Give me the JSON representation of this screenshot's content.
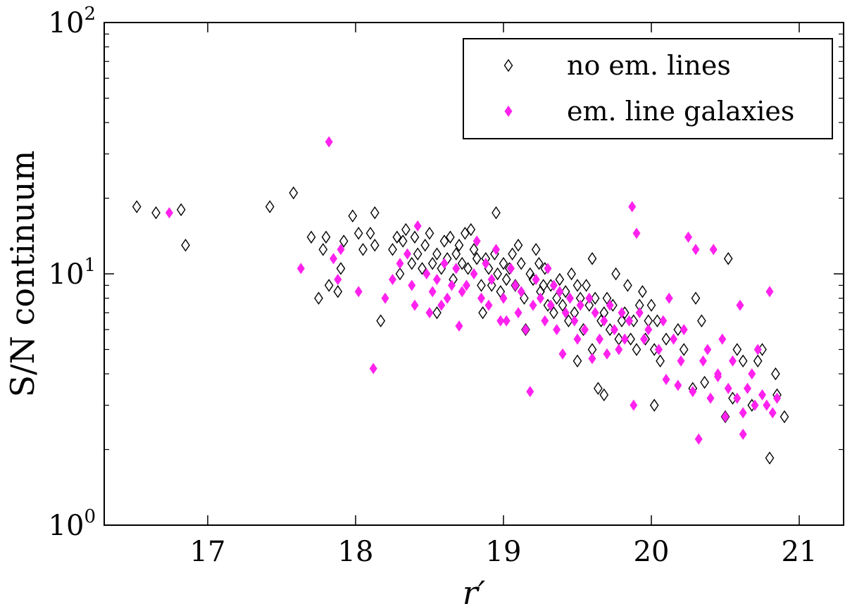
{
  "chart_data": {
    "type": "scatter",
    "title": "",
    "xlabel": "r′",
    "ylabel": "S/N continuum",
    "xlim": [
      16.3,
      21.3
    ],
    "ylim": [
      1,
      100
    ],
    "yscale": "log",
    "xticks": [
      17,
      18,
      19,
      20,
      21
    ],
    "xtick_labels": [
      "17",
      "18",
      "19",
      "20",
      "21"
    ],
    "yticks": [
      1,
      10,
      100
    ],
    "ytick_labels": [
      {
        "base": "10",
        "exp": "0"
      },
      {
        "base": "10",
        "exp": "1"
      },
      {
        "base": "10",
        "exp": "2"
      }
    ],
    "grid": false,
    "legend_position": "top-right",
    "series": [
      {
        "name": "no em. lines",
        "marker": "diamond-open",
        "color": "#000000",
        "points": [
          [
            16.52,
            18.5
          ],
          [
            16.65,
            17.5
          ],
          [
            16.82,
            18.0
          ],
          [
            16.85,
            13.0
          ],
          [
            17.42,
            18.5
          ],
          [
            17.58,
            21.0
          ],
          [
            17.7,
            14.0
          ],
          [
            17.75,
            8.0
          ],
          [
            17.78,
            12.5
          ],
          [
            17.8,
            14.0
          ],
          [
            17.82,
            9.0
          ],
          [
            17.88,
            8.5
          ],
          [
            17.9,
            10.5
          ],
          [
            17.92,
            13.5
          ],
          [
            17.98,
            17.0
          ],
          [
            18.02,
            14.5
          ],
          [
            18.05,
            12.5
          ],
          [
            18.1,
            14.5
          ],
          [
            18.13,
            13.0
          ],
          [
            18.13,
            17.5
          ],
          [
            18.17,
            6.5
          ],
          [
            18.25,
            12.5
          ],
          [
            18.28,
            14.0
          ],
          [
            18.3,
            10.0
          ],
          [
            18.32,
            13.5
          ],
          [
            18.34,
            15.0
          ],
          [
            18.38,
            11.0
          ],
          [
            18.4,
            14.0
          ],
          [
            18.42,
            12.0
          ],
          [
            18.45,
            10.5
          ],
          [
            18.47,
            13.0
          ],
          [
            18.5,
            14.5
          ],
          [
            18.52,
            11.0
          ],
          [
            18.55,
            12.0
          ],
          [
            18.55,
            7.0
          ],
          [
            18.58,
            10.5
          ],
          [
            18.6,
            13.5
          ],
          [
            18.62,
            11.5
          ],
          [
            18.64,
            14.0
          ],
          [
            18.66,
            9.5
          ],
          [
            18.68,
            12.0
          ],
          [
            18.7,
            13.0
          ],
          [
            18.72,
            11.0
          ],
          [
            18.74,
            14.5
          ],
          [
            18.76,
            10.5
          ],
          [
            18.78,
            15.0
          ],
          [
            18.8,
            12.5
          ],
          [
            18.82,
            11.5
          ],
          [
            18.85,
            9.0
          ],
          [
            18.86,
            7.0
          ],
          [
            18.88,
            11.5
          ],
          [
            18.9,
            10.5
          ],
          [
            18.92,
            9.0
          ],
          [
            18.94,
            12.0
          ],
          [
            18.95,
            17.5
          ],
          [
            18.96,
            10.0
          ],
          [
            18.98,
            8.5
          ],
          [
            19.0,
            11.0
          ],
          [
            19.02,
            9.5
          ],
          [
            19.04,
            10.5
          ],
          [
            19.06,
            12.0
          ],
          [
            19.08,
            9.0
          ],
          [
            19.1,
            13.0
          ],
          [
            19.12,
            11.0
          ],
          [
            19.14,
            8.0
          ],
          [
            19.15,
            6.0
          ],
          [
            19.18,
            10.0
          ],
          [
            19.2,
            9.5
          ],
          [
            19.22,
            12.5
          ],
          [
            19.24,
            11.0
          ],
          [
            19.25,
            8.5
          ],
          [
            19.27,
            9.0
          ],
          [
            19.28,
            10.5
          ],
          [
            19.3,
            7.5
          ],
          [
            19.32,
            9.0
          ],
          [
            19.34,
            7.0
          ],
          [
            19.36,
            8.0
          ],
          [
            19.38,
            9.5
          ],
          [
            19.4,
            7.5
          ],
          [
            19.42,
            8.5
          ],
          [
            19.44,
            6.5
          ],
          [
            19.46,
            10.0
          ],
          [
            19.48,
            7.0
          ],
          [
            19.5,
            9.0
          ],
          [
            19.5,
            4.5
          ],
          [
            19.52,
            8.0
          ],
          [
            19.54,
            6.0
          ],
          [
            19.56,
            9.0
          ],
          [
            19.58,
            7.5
          ],
          [
            19.6,
            11.5
          ],
          [
            19.6,
            5.0
          ],
          [
            19.62,
            8.0
          ],
          [
            19.64,
            3.5
          ],
          [
            19.66,
            6.5
          ],
          [
            19.68,
            7.0
          ],
          [
            19.68,
            3.3
          ],
          [
            19.7,
            8.0
          ],
          [
            19.72,
            6.0
          ],
          [
            19.74,
            7.5
          ],
          [
            19.76,
            10.0
          ],
          [
            19.78,
            5.5
          ],
          [
            19.8,
            6.5
          ],
          [
            19.82,
            7.0
          ],
          [
            19.84,
            9.0
          ],
          [
            19.86,
            5.5
          ],
          [
            19.88,
            6.5
          ],
          [
            19.9,
            5.0
          ],
          [
            19.92,
            7.5
          ],
          [
            19.94,
            8.5
          ],
          [
            19.96,
            5.5
          ],
          [
            19.98,
            6.5
          ],
          [
            20.0,
            7.5
          ],
          [
            20.02,
            5.0
          ],
          [
            20.02,
            3.0
          ],
          [
            20.04,
            6.5
          ],
          [
            20.06,
            4.5
          ],
          [
            20.1,
            5.5
          ],
          [
            20.18,
            6.0
          ],
          [
            20.22,
            5.0
          ],
          [
            20.28,
            3.5
          ],
          [
            20.3,
            8.0
          ],
          [
            20.34,
            6.5
          ],
          [
            20.36,
            3.7
          ],
          [
            20.5,
            2.7
          ],
          [
            20.52,
            11.5
          ],
          [
            20.55,
            3.2
          ],
          [
            20.58,
            5.0
          ],
          [
            20.62,
            4.5
          ],
          [
            20.68,
            3.0
          ],
          [
            20.72,
            4.5
          ],
          [
            20.75,
            5.0
          ],
          [
            20.8,
            1.85
          ],
          [
            20.84,
            4.0
          ],
          [
            20.85,
            3.3
          ],
          [
            20.9,
            2.7
          ]
        ]
      },
      {
        "name": "em. line galaxies",
        "marker": "diamond-filled",
        "color": "#ff22ee",
        "points": [
          [
            16.74,
            17.5
          ],
          [
            17.63,
            10.5
          ],
          [
            17.82,
            33.5
          ],
          [
            17.85,
            11.5
          ],
          [
            17.88,
            9.5
          ],
          [
            17.9,
            12.5
          ],
          [
            18.02,
            8.5
          ],
          [
            18.12,
            4.2
          ],
          [
            18.2,
            8.0
          ],
          [
            18.25,
            9.5
          ],
          [
            18.3,
            11.0
          ],
          [
            18.35,
            12.0
          ],
          [
            18.38,
            9.0
          ],
          [
            18.4,
            7.5
          ],
          [
            18.42,
            15.5
          ],
          [
            18.48,
            10.0
          ],
          [
            18.5,
            7.0
          ],
          [
            18.52,
            8.5
          ],
          [
            18.55,
            9.5
          ],
          [
            18.58,
            7.5
          ],
          [
            18.6,
            11.0
          ],
          [
            18.62,
            8.0
          ],
          [
            18.65,
            9.0
          ],
          [
            18.68,
            10.5
          ],
          [
            18.7,
            6.2
          ],
          [
            18.72,
            8.5
          ],
          [
            18.75,
            9.0
          ],
          [
            18.8,
            10.0
          ],
          [
            18.82,
            13.5
          ],
          [
            18.85,
            8.0
          ],
          [
            18.88,
            11.0
          ],
          [
            18.9,
            7.5
          ],
          [
            18.92,
            9.5
          ],
          [
            18.95,
            12.5
          ],
          [
            18.98,
            6.5
          ],
          [
            19.0,
            8.0
          ],
          [
            19.02,
            6.5
          ],
          [
            19.05,
            10.5
          ],
          [
            19.08,
            9.0
          ],
          [
            19.1,
            7.0
          ],
          [
            19.12,
            8.5
          ],
          [
            19.15,
            6.0
          ],
          [
            19.18,
            3.4
          ],
          [
            19.2,
            7.5
          ],
          [
            19.22,
            9.5
          ],
          [
            19.25,
            8.0
          ],
          [
            19.28,
            6.5
          ],
          [
            19.3,
            10.5
          ],
          [
            19.32,
            7.5
          ],
          [
            19.34,
            9.0
          ],
          [
            19.36,
            6.0
          ],
          [
            19.38,
            8.5
          ],
          [
            19.4,
            4.8
          ],
          [
            19.42,
            7.0
          ],
          [
            19.45,
            8.0
          ],
          [
            19.48,
            6.5
          ],
          [
            19.5,
            5.5
          ],
          [
            19.52,
            7.5
          ],
          [
            19.55,
            6.0
          ],
          [
            19.58,
            8.0
          ],
          [
            19.6,
            4.6
          ],
          [
            19.62,
            7.0
          ],
          [
            19.65,
            5.5
          ],
          [
            19.68,
            6.5
          ],
          [
            19.7,
            4.8
          ],
          [
            19.72,
            7.5
          ],
          [
            19.75,
            6.0
          ],
          [
            19.78,
            5.0
          ],
          [
            19.8,
            7.0
          ],
          [
            19.82,
            5.5
          ],
          [
            19.85,
            6.5
          ],
          [
            19.87,
            18.5
          ],
          [
            19.88,
            3.0
          ],
          [
            19.9,
            14.5
          ],
          [
            19.92,
            7.0
          ],
          [
            19.95,
            5.5
          ],
          [
            19.98,
            6.0
          ],
          [
            20.05,
            5.0
          ],
          [
            20.08,
            6.5
          ],
          [
            20.1,
            3.8
          ],
          [
            20.12,
            8.0
          ],
          [
            20.15,
            5.5
          ],
          [
            20.18,
            3.6
          ],
          [
            20.2,
            4.5
          ],
          [
            20.22,
            6.0
          ],
          [
            20.25,
            14.0
          ],
          [
            20.28,
            3.4
          ],
          [
            20.3,
            12.5
          ],
          [
            20.32,
            2.2
          ],
          [
            20.35,
            4.5
          ],
          [
            20.38,
            5.0
          ],
          [
            20.4,
            3.2
          ],
          [
            20.42,
            12.5
          ],
          [
            20.45,
            4.0
          ],
          [
            20.48,
            5.5
          ],
          [
            20.5,
            2.7
          ],
          [
            20.52,
            3.5
          ],
          [
            20.55,
            4.5
          ],
          [
            20.58,
            3.2
          ],
          [
            20.6,
            7.5
          ],
          [
            20.62,
            2.8
          ],
          [
            20.65,
            3.5
          ],
          [
            20.68,
            4.0
          ],
          [
            20.7,
            3.0
          ],
          [
            20.72,
            5.0
          ],
          [
            20.75,
            3.3
          ],
          [
            20.78,
            3.0
          ],
          [
            20.8,
            8.5
          ],
          [
            20.82,
            2.8
          ],
          [
            20.85,
            3.2
          ],
          [
            20.62,
            2.3
          ],
          [
            20.45,
            3.9
          ]
        ]
      }
    ]
  }
}
